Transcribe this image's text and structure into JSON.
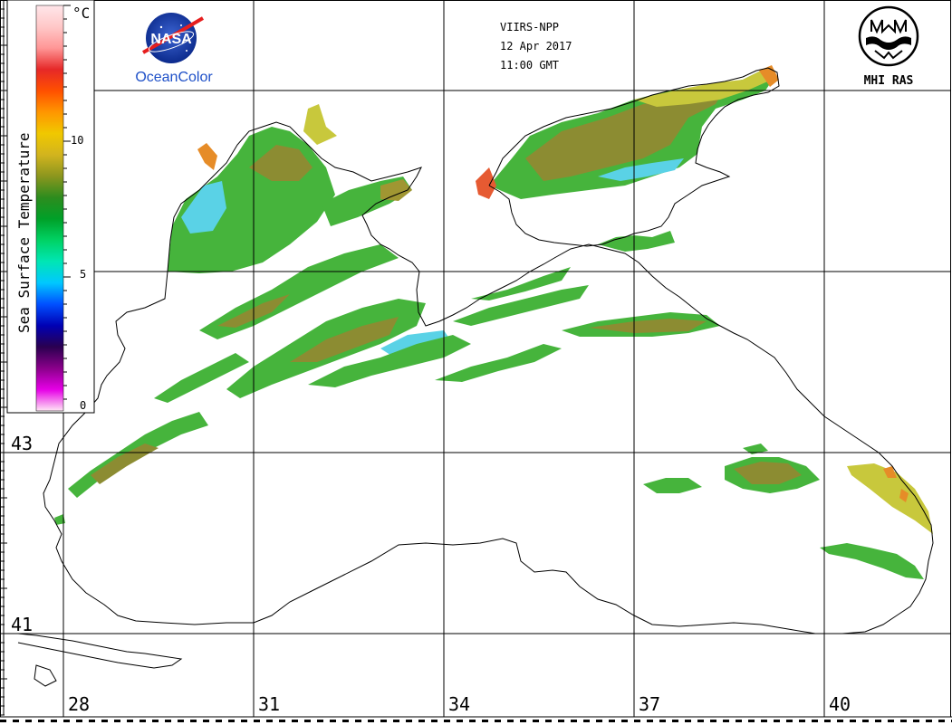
{
  "header": {
    "satellite": "VIIRS-NPP",
    "date": "12 Apr 2017",
    "time": "11:00 GMT"
  },
  "logos": {
    "left_badge": "NASA",
    "left_caption": "OceanColor",
    "right_caption": "MHI RAS"
  },
  "colorbar": {
    "title": "Sea Surface Temperature",
    "unit": "°C",
    "ticks": [
      "10",
      "5",
      "0"
    ],
    "colors": [
      "#ffe6f5",
      "#e600e6",
      "#8a008a",
      "#2a0050",
      "#0000b4",
      "#0050ff",
      "#00c8ff",
      "#00e6b4",
      "#00d264",
      "#00a028",
      "#2d8c1e",
      "#8c961e",
      "#d2b41e",
      "#f0c800",
      "#ff9600",
      "#ff5000",
      "#e62828",
      "#ff9696",
      "#ffc8c8",
      "#ffe6ea"
    ]
  },
  "grid": {
    "lon_labels": [
      "28",
      "31",
      "34",
      "37",
      "40"
    ],
    "lat_labels": [
      "43",
      "41"
    ]
  },
  "palette": {
    "green": "#46b43c",
    "olive": "#8c8c32",
    "yellow": "#c8c83c",
    "cyan": "#5ad2e6",
    "orange": "#e68c28",
    "coast": "#000000"
  }
}
